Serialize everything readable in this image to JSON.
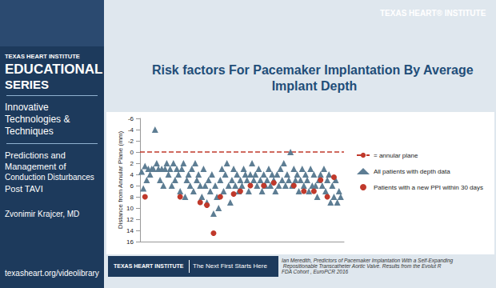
{
  "chart_data": {
    "type": "scatter",
    "title": "Risk factors For Pacemaker Implantation By Average Implant Depth",
    "y_label": "Distance from Annular Plane (mm)",
    "xlim": [
      0,
      122
    ],
    "ylim": [
      16,
      -6
    ],
    "yticks": [
      -6,
      -4,
      -2,
      0,
      2,
      4,
      6,
      8,
      10,
      12,
      14,
      16
    ],
    "grid": false,
    "legend": "right",
    "tick_labels": "y",
    "series": [
      {
        "name": "= annular plane",
        "type": "line",
        "color": "#c0392b",
        "line_style": "dashed",
        "y": 0
      },
      {
        "name": "All patients with depth data",
        "type": "scatter",
        "marker": "triangle",
        "color": "#5d7d93",
        "x": [
          1,
          2,
          3,
          4,
          5,
          6,
          7,
          8,
          9,
          10,
          11,
          12,
          13,
          14,
          15,
          16,
          17,
          18,
          19,
          20,
          21,
          22,
          23,
          24,
          25,
          26,
          27,
          28,
          29,
          30,
          31,
          32,
          33,
          34,
          35,
          36,
          37,
          38,
          39,
          40,
          41,
          42,
          43,
          44,
          45,
          46,
          47,
          48,
          49,
          50,
          51,
          52,
          53,
          54,
          55,
          56,
          57,
          58,
          59,
          60,
          61,
          62,
          63,
          64,
          65,
          66,
          67,
          68,
          69,
          70,
          71,
          72,
          73,
          74,
          75,
          76,
          77,
          78,
          79,
          80,
          81,
          82,
          83,
          84,
          85,
          86,
          87,
          88,
          89,
          90,
          91,
          92,
          93,
          94,
          95,
          96,
          97,
          98,
          99,
          100,
          101,
          102,
          103,
          104,
          105,
          106,
          107,
          108,
          109,
          110,
          111,
          112,
          113,
          114,
          115,
          116,
          117,
          118,
          119,
          120
        ],
        "values": [
          3.5,
          6.5,
          2.5,
          5,
          3,
          4,
          3,
          3,
          -4,
          2,
          3,
          5,
          3,
          6,
          3,
          2,
          4,
          3,
          6,
          2,
          5,
          3,
          4,
          7,
          3,
          2,
          8,
          5,
          4,
          6,
          3,
          7,
          2,
          5,
          4,
          6,
          8,
          3,
          6,
          9,
          5,
          7,
          4,
          11,
          6,
          8,
          10,
          5,
          3,
          7,
          4,
          2,
          6,
          9,
          5,
          3,
          6,
          4,
          7,
          5,
          6,
          3,
          4,
          5,
          7,
          4,
          2,
          5,
          4,
          6,
          3,
          5,
          7,
          4,
          6,
          5,
          3,
          6,
          4,
          5,
          7,
          4,
          6,
          3,
          5,
          2,
          6,
          4,
          5,
          0,
          6,
          3,
          5,
          4,
          7,
          5,
          3,
          6,
          4,
          5,
          7,
          3,
          6,
          4,
          6,
          8,
          5,
          4,
          6,
          3,
          7,
          5,
          4,
          9,
          6,
          8,
          5,
          9,
          7,
          8
        ]
      },
      {
        "name": "Patients with a new PPI within 30 days",
        "type": "scatter",
        "marker": "circle",
        "color": "#c0392b",
        "x": [
          3,
          24,
          36,
          40,
          44,
          48,
          56,
          60,
          66,
          74,
          80,
          92,
          98,
          104,
          108,
          112,
          116
        ],
        "values": [
          8,
          8,
          9,
          9.5,
          14.5,
          8,
          7.5,
          7,
          6,
          6,
          5.5,
          6,
          7,
          7,
          5,
          8,
          4.5
        ]
      }
    ]
  },
  "slide": {
    "logo": "TEXAS HEART® INSTITUTE",
    "left_panel": [
      "TEXAS HEART INSTITUTE",
      "EDUCATIONAL",
      "SERIES",
      "Innovative",
      "Technologies &",
      "Techniques",
      "Predictions and",
      "Management of",
      "Conduction Disturbances",
      "Post TAVI",
      "Zvonimir Krajcer, MD",
      "texasheart.org/videolibrary"
    ],
    "footer_brand": "TEXAS HEART INSTITUTE",
    "footer_tagline": "The Next First Starts Here",
    "citation": "Ian Meredith, Predictors of Pacemaker Implantation With a Self-Expanding Repositionable Transcatheter Aortic Valve. Results from the Evolut R FDA Cohort , EuroPCR 2016"
  }
}
